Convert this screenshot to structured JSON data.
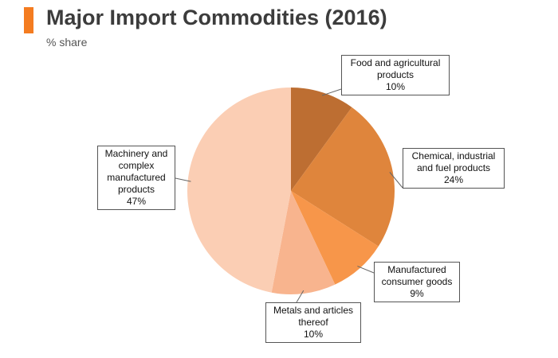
{
  "title": "Major Import Commodities (2016)",
  "subtitle": "% share",
  "colors": {
    "accent": "#f47c20"
  },
  "chart_data": {
    "type": "pie",
    "title": "Major Import Commodities (2016)",
    "subtitle": "% share",
    "start_angle_deg": 0,
    "direction": "clockwise",
    "slices": [
      {
        "label": "Food and agricultural products",
        "value": 10,
        "value_label": "10%",
        "color": "#bd6e32"
      },
      {
        "label": "Chemical, industrial and fuel products",
        "value": 24,
        "value_label": "24%",
        "color": "#df853c"
      },
      {
        "label": "Manufactured consumer goods",
        "value": 9,
        "value_label": "9%",
        "color": "#f7964a"
      },
      {
        "label": "Metals and articles thereof",
        "value": 10,
        "value_label": "10%",
        "color": "#f8b48e"
      },
      {
        "label": "Machinery and complex manufactured products",
        "value": 47,
        "value_label": "47%",
        "color": "#fbceb4"
      }
    ],
    "label_lines": {
      "food": [
        "Food and agricultural",
        "products"
      ],
      "chemical": [
        "Chemical, industrial",
        "and fuel products"
      ],
      "consumer": [
        "Manufactured",
        "consumer goods"
      ],
      "metals": [
        "Metals and articles",
        "thereof"
      ],
      "machinery": [
        "Machinery and",
        "complex",
        "manufactured",
        "products"
      ]
    }
  }
}
